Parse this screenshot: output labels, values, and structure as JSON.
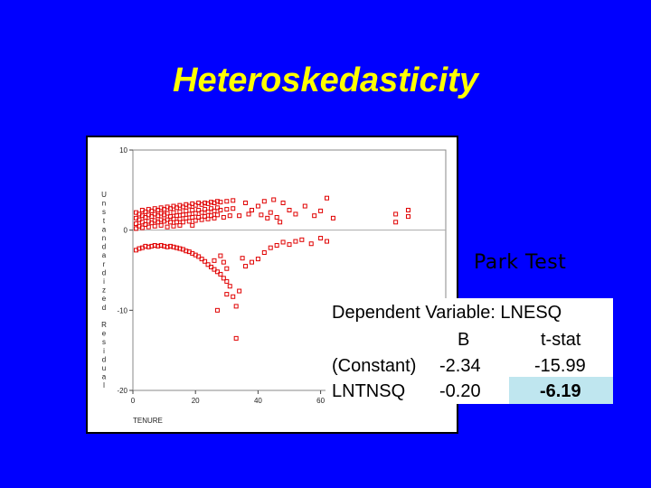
{
  "slide": {
    "title": "Heteroskedasticity",
    "subtitle": "Park Test",
    "colors": {
      "background": "#0000ff",
      "title": "#ffff00",
      "highlight": "#bfe6ef",
      "points": "#e00000"
    }
  },
  "regression_table": {
    "header": "Dependent Variable: LNESQ",
    "col_b": "B",
    "col_t": "t-stat",
    "rows": [
      {
        "name": "(Constant)",
        "b": "-2.34",
        "t": "-15.99"
      },
      {
        "name": "LNTNSQ",
        "b": "-0.20",
        "t": "-6.19"
      }
    ]
  },
  "chart_data": {
    "type": "scatter",
    "xlabel": "TENURE",
    "ylabel": "Unstandardized Residual",
    "xlim": [
      0,
      100
    ],
    "ylim": [
      -20,
      10
    ],
    "xticks": [
      "0",
      "20",
      "40",
      "60"
    ],
    "yticks": [
      "10",
      "0",
      "-10",
      "-20"
    ],
    "series": [
      {
        "points": [
          [
            1,
            2.2
          ],
          [
            1,
            1.5
          ],
          [
            1,
            0.8
          ],
          [
            1,
            0.2
          ],
          [
            2,
            2.0
          ],
          [
            2,
            1.3
          ],
          [
            2,
            0.5
          ],
          [
            3,
            2.5
          ],
          [
            3,
            1.8
          ],
          [
            3,
            1.0
          ],
          [
            3,
            0.3
          ],
          [
            4,
            2.3
          ],
          [
            4,
            1.6
          ],
          [
            4,
            0.7
          ],
          [
            5,
            2.6
          ],
          [
            5,
            1.9
          ],
          [
            5,
            1.1
          ],
          [
            5,
            0.4
          ],
          [
            6,
            2.4
          ],
          [
            6,
            1.7
          ],
          [
            6,
            0.9
          ],
          [
            7,
            2.7
          ],
          [
            7,
            2.0
          ],
          [
            7,
            1.2
          ],
          [
            7,
            0.5
          ],
          [
            8,
            2.5
          ],
          [
            8,
            1.8
          ],
          [
            8,
            1.0
          ],
          [
            9,
            2.8
          ],
          [
            9,
            2.1
          ],
          [
            9,
            1.3
          ],
          [
            9,
            0.6
          ],
          [
            10,
            2.6
          ],
          [
            10,
            1.9
          ],
          [
            10,
            1.1
          ],
          [
            11,
            2.9
          ],
          [
            11,
            2.1
          ],
          [
            11,
            1.3
          ],
          [
            11,
            0.4
          ],
          [
            12,
            2.7
          ],
          [
            12,
            1.7
          ],
          [
            12,
            1.0
          ],
          [
            13,
            3.0
          ],
          [
            13,
            2.2
          ],
          [
            13,
            1.4
          ],
          [
            13,
            0.5
          ],
          [
            14,
            2.8
          ],
          [
            14,
            1.8
          ],
          [
            14,
            1.0
          ],
          [
            15,
            3.1
          ],
          [
            15,
            2.3
          ],
          [
            15,
            1.4
          ],
          [
            15,
            0.6
          ],
          [
            16,
            2.9
          ],
          [
            16,
            1.9
          ],
          [
            16,
            1.0
          ],
          [
            17,
            3.2
          ],
          [
            17,
            2.4
          ],
          [
            17,
            1.5
          ],
          [
            18,
            3.0
          ],
          [
            18,
            2.0
          ],
          [
            18,
            1.1
          ],
          [
            19,
            3.3
          ],
          [
            19,
            2.5
          ],
          [
            19,
            1.6
          ],
          [
            19,
            0.6
          ],
          [
            20,
            3.1
          ],
          [
            20,
            2.1
          ],
          [
            20,
            1.2
          ],
          [
            21,
            3.4
          ],
          [
            21,
            2.5
          ],
          [
            21,
            1.6
          ],
          [
            22,
            3.2
          ],
          [
            22,
            2.2
          ],
          [
            22,
            1.3
          ],
          [
            23,
            3.4
          ],
          [
            23,
            2.6
          ],
          [
            23,
            1.7
          ],
          [
            24,
            3.3
          ],
          [
            24,
            2.3
          ],
          [
            24,
            1.4
          ],
          [
            25,
            3.5
          ],
          [
            25,
            2.7
          ],
          [
            25,
            1.8
          ],
          [
            26,
            3.4
          ],
          [
            26,
            2.4
          ],
          [
            26,
            1.5
          ],
          [
            27,
            3.6
          ],
          [
            27,
            2.8
          ],
          [
            27,
            1.9
          ],
          [
            28,
            3.5
          ],
          [
            28,
            2.5
          ],
          [
            29,
            1.6
          ],
          [
            30,
            3.6
          ],
          [
            30,
            2.6
          ],
          [
            31,
            1.8
          ],
          [
            32,
            3.7
          ],
          [
            32,
            2.7
          ],
          [
            34,
            1.8
          ],
          [
            36,
            3.4
          ],
          [
            37,
            2.0
          ],
          [
            38,
            2.5
          ],
          [
            40,
            3.0
          ],
          [
            41,
            1.9
          ],
          [
            42,
            3.6
          ],
          [
            43,
            1.5
          ],
          [
            44,
            2.2
          ],
          [
            45,
            3.8
          ],
          [
            46,
            1.6
          ],
          [
            47,
            1.0
          ],
          [
            48,
            3.4
          ],
          [
            50,
            2.5
          ],
          [
            52,
            2.0
          ],
          [
            55,
            3.0
          ],
          [
            58,
            1.8
          ],
          [
            60,
            2.4
          ],
          [
            62,
            4.0
          ],
          [
            64,
            1.5
          ],
          [
            84,
            2.0
          ],
          [
            84,
            1.0
          ],
          [
            88,
            2.5
          ],
          [
            88,
            1.7
          ],
          [
            1,
            -2.5
          ],
          [
            2,
            -2.3
          ],
          [
            3,
            -2.2
          ],
          [
            4,
            -2.0
          ],
          [
            5,
            -2.1
          ],
          [
            6,
            -2.0
          ],
          [
            7,
            -1.9
          ],
          [
            8,
            -2.0
          ],
          [
            9,
            -1.9
          ],
          [
            10,
            -2.0
          ],
          [
            11,
            -2.1
          ],
          [
            12,
            -2.0
          ],
          [
            13,
            -2.1
          ],
          [
            14,
            -2.2
          ],
          [
            15,
            -2.3
          ],
          [
            16,
            -2.4
          ],
          [
            17,
            -2.6
          ],
          [
            18,
            -2.7
          ],
          [
            19,
            -2.9
          ],
          [
            20,
            -3.1
          ],
          [
            21,
            -3.3
          ],
          [
            22,
            -3.6
          ],
          [
            23,
            -3.9
          ],
          [
            24,
            -4.3
          ],
          [
            25,
            -4.6
          ],
          [
            26,
            -4.9
          ],
          [
            27,
            -5.2
          ],
          [
            28,
            -5.5
          ],
          [
            29,
            -6.0
          ],
          [
            30,
            -6.4
          ],
          [
            30,
            -8.0
          ],
          [
            31,
            -7.0
          ],
          [
            32,
            -8.3
          ],
          [
            33,
            -9.5
          ],
          [
            34,
            -7.6
          ],
          [
            36,
            -4.5
          ],
          [
            38,
            -4.0
          ],
          [
            40,
            -3.6
          ],
          [
            42,
            -2.8
          ],
          [
            44,
            -2.2
          ],
          [
            46,
            -1.9
          ],
          [
            48,
            -1.5
          ],
          [
            50,
            -1.8
          ],
          [
            52,
            -1.4
          ],
          [
            54,
            -1.2
          ],
          [
            57,
            -1.7
          ],
          [
            60,
            -1.0
          ],
          [
            62,
            -1.4
          ],
          [
            26,
            -3.8
          ],
          [
            28,
            -3.2
          ],
          [
            30,
            -4.8
          ],
          [
            27,
            -10.0
          ],
          [
            33,
            -13.5
          ],
          [
            29,
            -4.0
          ],
          [
            35,
            -3.5
          ]
        ]
      }
    ]
  }
}
